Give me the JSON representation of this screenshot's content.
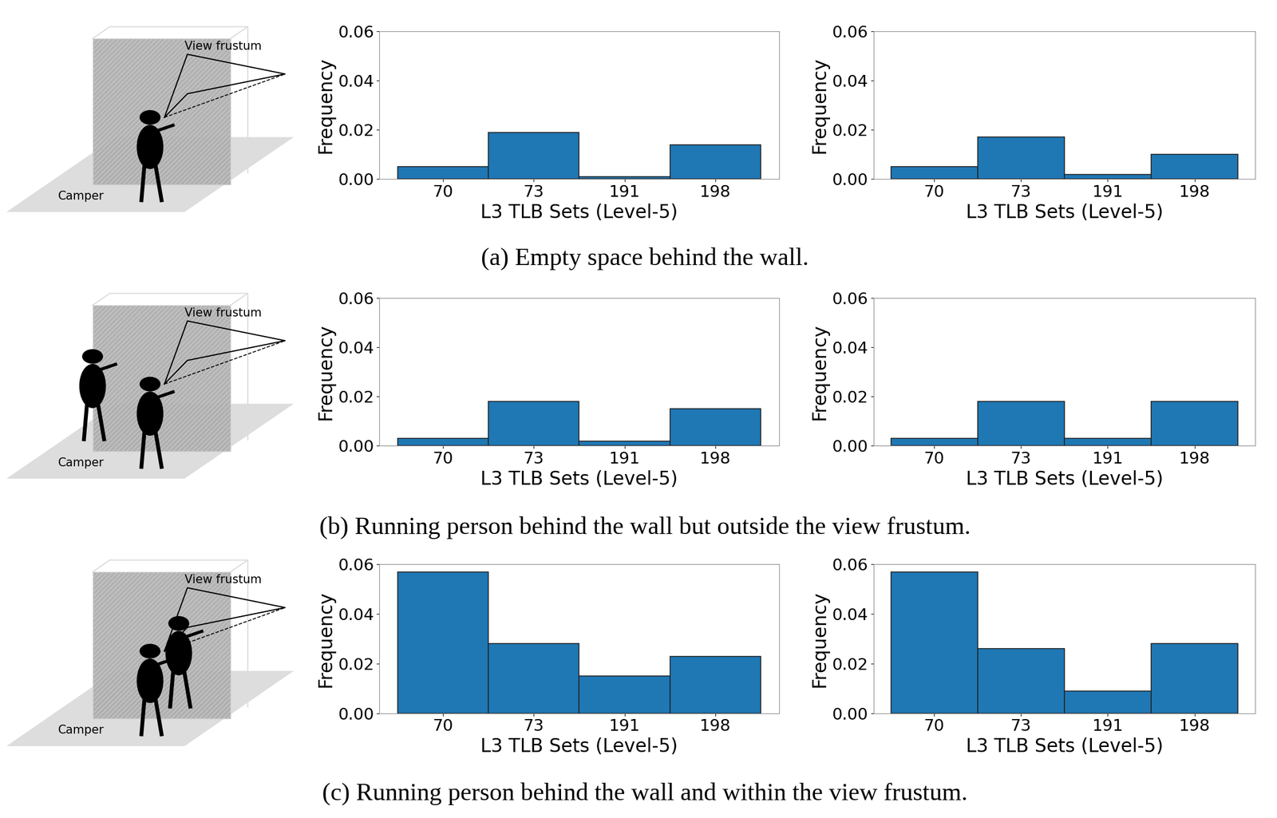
{
  "chart_data": [
    {
      "type": "bar",
      "categories": [
        "70",
        "73",
        "191",
        "198"
      ],
      "values": [
        0.005,
        0.019,
        0.001,
        0.014
      ],
      "color": "#1f77b4",
      "x_label": "L3 TLB Sets (Level-5)",
      "y_label": "Frequency",
      "ylim": [
        0,
        0.06
      ],
      "yticks": [
        {
          "value": 0,
          "label": "0.00"
        },
        {
          "value": 0.02,
          "label": "0.02"
        },
        {
          "value": 0.04,
          "label": "0.04"
        },
        {
          "value": 0.06,
          "label": "0.06"
        }
      ],
      "grid": false
    },
    {
      "type": "bar",
      "categories": [
        "70",
        "73",
        "191",
        "198"
      ],
      "values": [
        0.005,
        0.017,
        0.002,
        0.01
      ],
      "color": "#1f77b4",
      "x_label": "L3 TLB Sets (Level-5)",
      "y_label": "Frequency",
      "ylim": [
        0,
        0.06
      ],
      "yticks": [
        {
          "value": 0,
          "label": "0.00"
        },
        {
          "value": 0.02,
          "label": "0.02"
        },
        {
          "value": 0.04,
          "label": "0.04"
        },
        {
          "value": 0.06,
          "label": "0.06"
        }
      ],
      "grid": false
    },
    {
      "type": "bar",
      "categories": [
        "70",
        "73",
        "191",
        "198"
      ],
      "values": [
        0.003,
        0.018,
        0.002,
        0.015
      ],
      "color": "#1f77b4",
      "x_label": "L3 TLB Sets (Level-5)",
      "y_label": "Frequency",
      "ylim": [
        0,
        0.06
      ],
      "yticks": [
        {
          "value": 0,
          "label": "0.00"
        },
        {
          "value": 0.02,
          "label": "0.02"
        },
        {
          "value": 0.04,
          "label": "0.04"
        },
        {
          "value": 0.06,
          "label": "0.06"
        }
      ],
      "grid": false
    },
    {
      "type": "bar",
      "categories": [
        "70",
        "73",
        "191",
        "198"
      ],
      "values": [
        0.003,
        0.018,
        0.003,
        0.018
      ],
      "color": "#1f77b4",
      "x_label": "L3 TLB Sets (Level-5)",
      "y_label": "Frequency",
      "ylim": [
        0,
        0.06
      ],
      "yticks": [
        {
          "value": 0,
          "label": "0.00"
        },
        {
          "value": 0.02,
          "label": "0.02"
        },
        {
          "value": 0.04,
          "label": "0.04"
        },
        {
          "value": 0.06,
          "label": "0.06"
        }
      ],
      "grid": false
    },
    {
      "type": "bar",
      "categories": [
        "70",
        "73",
        "191",
        "198"
      ],
      "values": [
        0.057,
        0.028,
        0.015,
        0.023
      ],
      "color": "#1f77b4",
      "x_label": "L3 TLB Sets (Level-5)",
      "y_label": "Frequency",
      "ylim": [
        0,
        0.06
      ],
      "yticks": [
        {
          "value": 0,
          "label": "0.00"
        },
        {
          "value": 0.02,
          "label": "0.02"
        },
        {
          "value": 0.04,
          "label": "0.04"
        },
        {
          "value": 0.06,
          "label": "0.06"
        }
      ],
      "grid": false
    },
    {
      "type": "bar",
      "categories": [
        "70",
        "73",
        "191",
        "198"
      ],
      "values": [
        0.057,
        0.026,
        0.009,
        0.028
      ],
      "color": "#1f77b4",
      "x_label": "L3 TLB Sets (Level-5)",
      "y_label": "Frequency",
      "ylim": [
        0,
        0.06
      ],
      "yticks": [
        {
          "value": 0,
          "label": "0.00"
        },
        {
          "value": 0.02,
          "label": "0.02"
        },
        {
          "value": 0.04,
          "label": "0.04"
        },
        {
          "value": 0.06,
          "label": "0.06"
        }
      ],
      "grid": false
    }
  ],
  "captions": [
    "(a) Empty space behind the wall.",
    "(b) Running person behind the wall but outside the view frustum.",
    "(c) Running person behind the wall and within the view frustum."
  ],
  "illustration_labels": {
    "frustum": "View frustum",
    "camper": "Camper"
  }
}
